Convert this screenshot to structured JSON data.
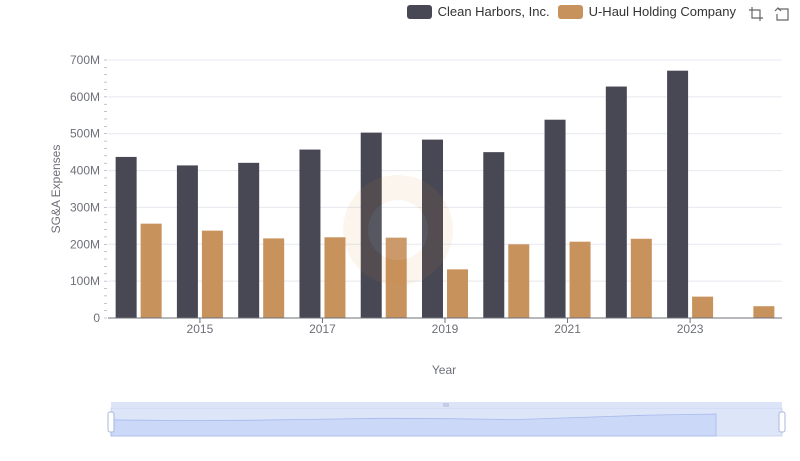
{
  "legend": {
    "items": [
      {
        "name": "Clean Harbors, Inc.",
        "color": "#484855"
      },
      {
        "name": "U-Haul Holding Company",
        "color": "#c8925d"
      }
    ]
  },
  "toolbox": {
    "icons": [
      "zoom-icon",
      "restore-icon"
    ]
  },
  "chart_data": {
    "type": "bar",
    "xlabel": "Year",
    "ylabel": "SG&A Expenses",
    "x": [
      2014,
      2015,
      2016,
      2017,
      2018,
      2019,
      2020,
      2021,
      2022,
      2023,
      2024
    ],
    "x_tick_labels": [
      "2015",
      "2017",
      "2019",
      "2021",
      "2023"
    ],
    "ylim": [
      0,
      700000000
    ],
    "y_tick_labels": [
      "0",
      "100M",
      "200M",
      "300M",
      "400M",
      "500M",
      "600M",
      "700M"
    ],
    "grid": true,
    "legend_position": "top-right",
    "series": [
      {
        "name": "Clean Harbors, Inc.",
        "color": "#484855",
        "values": [
          437000000,
          414000000,
          421000000,
          457000000,
          503000000,
          484000000,
          450000000,
          538000000,
          628000000,
          671000000,
          null
        ]
      },
      {
        "name": "U-Haul Holding Company",
        "color": "#c8925d",
        "values": [
          256000000,
          237000000,
          216000000,
          219000000,
          218000000,
          132000000,
          200000000,
          207000000,
          215000000,
          58000000,
          32000000
        ]
      }
    ]
  }
}
